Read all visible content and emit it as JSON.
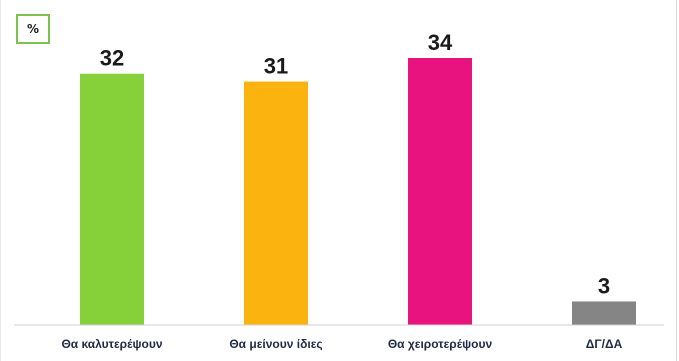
{
  "unit_label": "%",
  "chart_data": {
    "type": "bar",
    "categories": [
      "Θα καλυτερέψουν",
      "Θα μείνουν ίδιες",
      "Θα χειροτερέψουν",
      "ΔΓ/ΔΑ"
    ],
    "values": [
      32,
      31,
      34,
      3
    ],
    "colors": [
      "#86d13a",
      "#fbb40f",
      "#e8137f",
      "#858585"
    ],
    "title": "",
    "xlabel": "",
    "ylabel": "",
    "ylim": [
      0,
      37
    ],
    "grid": false,
    "legend": "none"
  }
}
